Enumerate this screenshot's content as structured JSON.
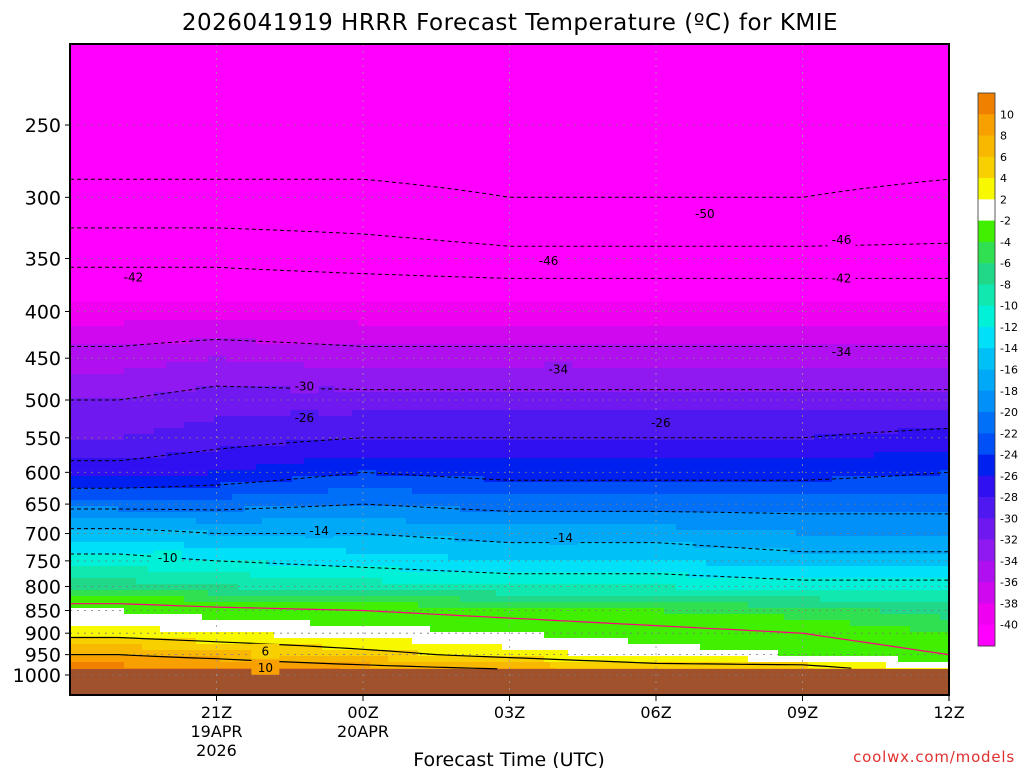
{
  "title": "2026041919 HRRR Forecast Temperature (ºC) for KMIE",
  "watermark": "coolwx.com/models",
  "chart_data": {
    "type": "contour",
    "title": "2026041919 HRRR Forecast Temperature (ºC) for KMIE",
    "xlabel": "Forecast Time (UTC)",
    "ylabel": "",
    "y_scale": "log",
    "ylim": [
      1000,
      200
    ],
    "xlim_hours": [
      -3,
      15
    ],
    "x_ticks": [
      {
        "hour": 0,
        "label": "21Z",
        "sub": [
          "19APR",
          "2026"
        ]
      },
      {
        "hour": 3,
        "label": "00Z",
        "sub": [
          "20APR"
        ]
      },
      {
        "hour": 6,
        "label": "03Z",
        "sub": []
      },
      {
        "hour": 9,
        "label": "06Z",
        "sub": []
      },
      {
        "hour": 12,
        "label": "09Z",
        "sub": []
      },
      {
        "hour": 15,
        "label": "12Z",
        "sub": []
      }
    ],
    "y_ticks": [
      250,
      300,
      350,
      400,
      450,
      500,
      550,
      600,
      650,
      700,
      750,
      800,
      850,
      900,
      950,
      1000
    ],
    "grid": true,
    "ground_level_hpa": 985,
    "levels_hpa": [
      1000,
      950,
      900,
      850,
      800,
      750,
      700,
      650,
      600,
      550,
      500,
      450,
      400,
      350,
      300,
      250,
      200
    ],
    "columns_hours": [
      -2,
      0,
      3,
      6,
      9,
      12,
      15
    ],
    "temperature_c": [
      [
        14,
        14,
        13,
        12,
        10,
        10,
        5
      ],
      [
        10,
        9,
        7,
        5,
        3,
        2,
        0
      ],
      [
        5,
        4,
        3,
        2,
        1,
        0,
        -2
      ],
      [
        2,
        1,
        0,
        -1,
        -2,
        -3,
        -5
      ],
      [
        -5,
        -6,
        -7,
        -8,
        -8,
        -9,
        -9
      ],
      [
        -9,
        -10,
        -11,
        -12,
        -12,
        -13,
        -13
      ],
      [
        -13,
        -14,
        -14,
        -15,
        -15,
        -16,
        -16
      ],
      [
        -19,
        -19,
        -18,
        -19,
        -19,
        -19,
        -19
      ],
      [
        -25,
        -24,
        -22,
        -23,
        -23,
        -23,
        -22
      ],
      [
        -28,
        -27,
        -26,
        -26,
        -26,
        -26,
        -25
      ],
      [
        -30,
        -29,
        -29,
        -29,
        -29,
        -29,
        -29
      ],
      [
        -33,
        -32,
        -33,
        -33,
        -33,
        -33,
        -33
      ],
      [
        -37,
        -37,
        -37,
        -37,
        -37,
        -37,
        -37
      ],
      [
        -43,
        -43,
        -44,
        -45,
        -45,
        -45,
        -45
      ],
      [
        -49,
        -49,
        -49,
        -50,
        -50,
        -50,
        -49
      ],
      [
        -53,
        -53,
        -53,
        -53,
        -53,
        -53,
        -53
      ],
      [
        -53,
        -53,
        -53,
        -53,
        -53,
        -53,
        -53
      ]
    ],
    "contour_labels": [
      {
        "text": "-50",
        "hour": 10.0,
        "hpa": 313
      },
      {
        "text": "-46",
        "hour": 6.8,
        "hpa": 352
      },
      {
        "text": "-46",
        "hour": 12.8,
        "hpa": 334
      },
      {
        "text": "-42",
        "hour": -1.7,
        "hpa": 367
      },
      {
        "text": "-42",
        "hour": 12.8,
        "hpa": 368
      },
      {
        "text": "-34",
        "hour": 7.0,
        "hpa": 463
      },
      {
        "text": "-34",
        "hour": 12.8,
        "hpa": 443
      },
      {
        "text": "-30",
        "hour": 1.8,
        "hpa": 483
      },
      {
        "text": "-26",
        "hour": 1.8,
        "hpa": 523
      },
      {
        "text": "-26",
        "hour": 9.1,
        "hpa": 530
      },
      {
        "text": "-14",
        "hour": 2.1,
        "hpa": 696
      },
      {
        "text": "-14",
        "hour": 7.1,
        "hpa": 708
      },
      {
        "text": "-10",
        "hour": -1.0,
        "hpa": 745
      },
      {
        "text": "6",
        "hour": 1.0,
        "hpa": 943
      },
      {
        "text": "10",
        "hour": 1.0,
        "hpa": 982
      }
    ],
    "colorbar": {
      "labels": [
        "10",
        "8",
        "6",
        "4",
        "2",
        "-2",
        "-4",
        "-6",
        "-8",
        "-10",
        "-12",
        "-14",
        "-16",
        "-18",
        "-20",
        "-22",
        "-24",
        "-26",
        "-28",
        "-30",
        "-32",
        "-34",
        "-36",
        "-38",
        "-40"
      ],
      "colors": [
        "#f08000",
        "#f8a000",
        "#f8b800",
        "#f8d000",
        "#f8f800",
        "#ffffff",
        "#40f000",
        "#30e050",
        "#20d888",
        "#10e8b0",
        "#00f0d8",
        "#00e0f8",
        "#00c0f8",
        "#00a8f8",
        "#0090f8",
        "#0070f8",
        "#0050f8",
        "#0020f0",
        "#3010f0",
        "#5018f0",
        "#7018f0",
        "#9018f0",
        "#b010f0",
        "#d008f0",
        "#f000f0",
        "#ff00ff"
      ],
      "thresholds": [
        12,
        10,
        8,
        6,
        4,
        2,
        -2,
        -4,
        -6,
        -8,
        -10,
        -12,
        -14,
        -16,
        -18,
        -20,
        -22,
        -24,
        -26,
        -28,
        -30,
        -32,
        -34,
        -36,
        -38,
        -40
      ]
    },
    "terrain_color": "#a0522d",
    "freezing_line_color": "#ff0080"
  }
}
